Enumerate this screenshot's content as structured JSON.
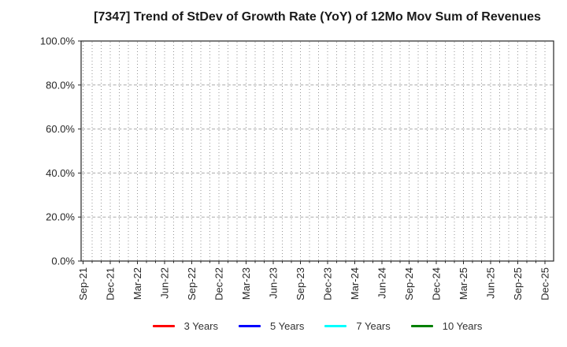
{
  "chart_data": {
    "type": "line",
    "title": "[7347]  Trend of StDev of Growth Rate (YoY) of 12Mo Mov Sum of Revenues",
    "xlabel": "",
    "ylabel": "",
    "x_tick_labels": [
      "Sep-21",
      "Dec-21",
      "Mar-22",
      "Jun-22",
      "Sep-22",
      "Dec-22",
      "Mar-23",
      "Jun-23",
      "Sep-23",
      "Dec-23",
      "Mar-24",
      "Jun-24",
      "Sep-24",
      "Dec-24",
      "Mar-25",
      "Jun-25",
      "Sep-25",
      "Dec-25"
    ],
    "y_tick_labels": [
      "0.0%",
      "20.0%",
      "40.0%",
      "60.0%",
      "80.0%",
      "100.0%"
    ],
    "ylim": [
      0,
      100
    ],
    "y_tick_step": 20,
    "grid": true,
    "legend_position": "bottom",
    "series": [
      {
        "name": "3 Years",
        "color": "#ff0000",
        "values": []
      },
      {
        "name": "5 Years",
        "color": "#0000ff",
        "values": []
      },
      {
        "name": "7 Years",
        "color": "#00ffff",
        "values": []
      },
      {
        "name": "10 Years",
        "color": "#008000",
        "values": []
      }
    ],
    "colors": {
      "border": "#262626",
      "grid_horizontal": "#aaaaaa",
      "grid_vertical": "#8a8a8a",
      "tick_text": "#262626"
    }
  }
}
